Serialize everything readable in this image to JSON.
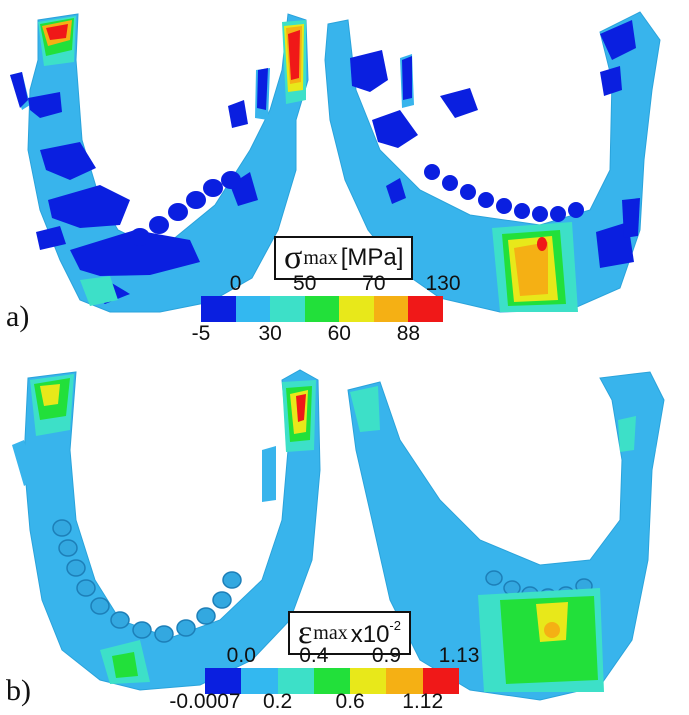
{
  "panels": [
    {
      "label": "a)",
      "legend": {
        "symbol": "σ",
        "subscript": "max",
        "unit": "[MPa]",
        "top_ticks": [
          "0",
          "50",
          "70",
          "130"
        ],
        "bottom_ticks": [
          "-5",
          "30",
          "60",
          "88"
        ],
        "colors": [
          "#0a1fe0",
          "#33b8f0",
          "#3de0c8",
          "#22e03a",
          "#e8e81a",
          "#f5b014",
          "#f01818"
        ]
      }
    },
    {
      "label": "b)",
      "legend": {
        "symbol": "ε",
        "subscript": "max",
        "unit_prefix": "x10",
        "unit_exp": "-2",
        "top_ticks": [
          "0.0",
          "0.4",
          "0.9",
          "1.13"
        ],
        "bottom_ticks": [
          "-0.0007",
          "0.2",
          "0.6",
          "1.12"
        ],
        "colors": [
          "#0a1fe0",
          "#33b8f0",
          "#3de0c8",
          "#22e03a",
          "#e8e81a",
          "#f5b014",
          "#f01818"
        ]
      }
    }
  ],
  "colors": {
    "bone": "#38b4ec",
    "bone_edge": "#2aa3db",
    "low": "#0a1fe0",
    "teal": "#3de0c8",
    "green": "#22e03a",
    "yellow": "#e8e81a",
    "orange": "#f5b014",
    "red": "#f01818"
  }
}
